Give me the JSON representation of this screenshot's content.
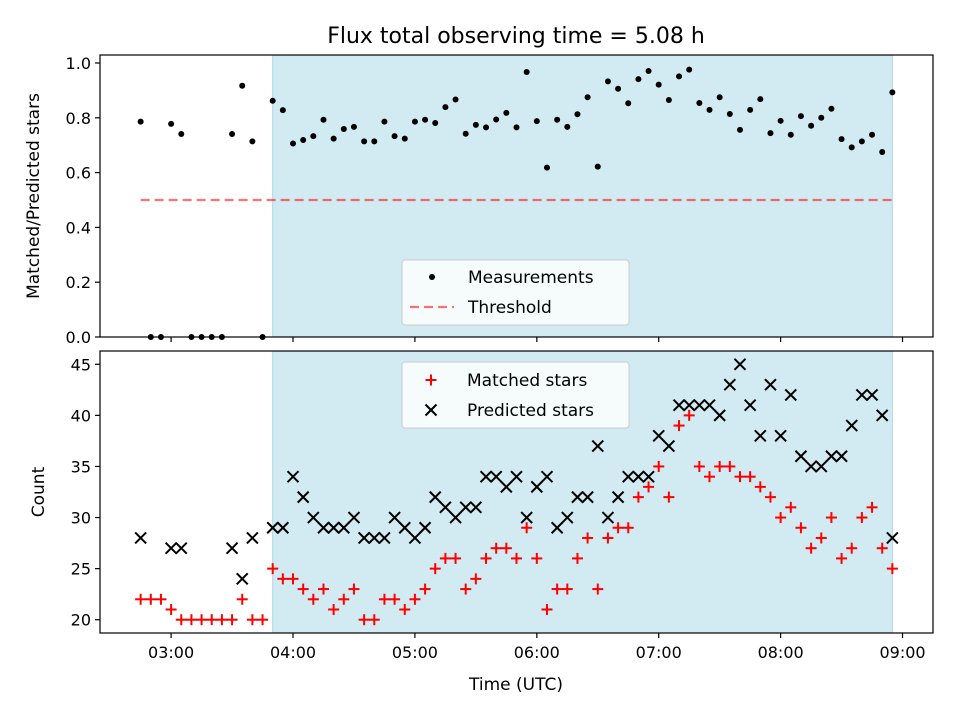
{
  "figure": {
    "title": "Flux total observing time = 5.08 h",
    "xlabel": "Time (UTC)",
    "x_ticks": [
      "03:00",
      "04:00",
      "05:00",
      "06:00",
      "07:00",
      "08:00",
      "09:00"
    ]
  },
  "colors": {
    "shade": "#add8e6",
    "threshold": "#ff0000",
    "matched": "#ff0000",
    "predicted": "#000000",
    "measurements": "#000000"
  },
  "chart_data": [
    {
      "type": "scatter",
      "title": "Flux total observing time = 5.08 h",
      "xlabel": "",
      "ylabel": "Matched/Predicted stars",
      "x_range": [
        "02:25",
        "09:15"
      ],
      "ylim": [
        0,
        1.0
      ],
      "y_ticks": [
        "0.0",
        "0.2",
        "0.4",
        "0.6",
        "0.8",
        "1.0"
      ],
      "shaded_interval": [
        "03:50",
        "08:55"
      ],
      "legend": {
        "placement": "lower-center",
        "entries": [
          "Measurements",
          "Threshold"
        ]
      },
      "threshold": {
        "name": "Threshold",
        "value": 0.5,
        "x_range": [
          "02:45",
          "08:55"
        ]
      },
      "series": [
        {
          "name": "Measurements",
          "points": [
            [
              "02:45",
              0.786
            ],
            [
              "02:50",
              0.0
            ],
            [
              "02:55",
              0.0
            ],
            [
              "03:00",
              0.778
            ],
            [
              "03:05",
              0.741
            ],
            [
              "03:10",
              0.0
            ],
            [
              "03:15",
              0.0
            ],
            [
              "03:20",
              0.0
            ],
            [
              "03:25",
              0.0
            ],
            [
              "03:30",
              0.741
            ],
            [
              "03:35",
              0.917
            ],
            [
              "03:40",
              0.714
            ],
            [
              "03:45",
              0.0
            ],
            [
              "03:50",
              0.862
            ],
            [
              "03:55",
              0.828
            ],
            [
              "04:00",
              0.706
            ],
            [
              "04:05",
              0.719
            ],
            [
              "04:10",
              0.733
            ],
            [
              "04:15",
              0.793
            ],
            [
              "04:20",
              0.724
            ],
            [
              "04:25",
              0.759
            ],
            [
              "04:30",
              0.767
            ],
            [
              "04:35",
              0.714
            ],
            [
              "04:40",
              0.714
            ],
            [
              "04:45",
              0.786
            ],
            [
              "04:50",
              0.733
            ],
            [
              "04:55",
              0.724
            ],
            [
              "05:00",
              0.786
            ],
            [
              "05:05",
              0.793
            ],
            [
              "05:10",
              0.781
            ],
            [
              "05:15",
              0.839
            ],
            [
              "05:20",
              0.867
            ],
            [
              "05:25",
              0.742
            ],
            [
              "05:30",
              0.774
            ],
            [
              "05:35",
              0.765
            ],
            [
              "05:40",
              0.794
            ],
            [
              "05:45",
              0.818
            ],
            [
              "05:50",
              0.765
            ],
            [
              "05:55",
              0.967
            ],
            [
              "06:00",
              0.788
            ],
            [
              "06:05",
              0.618
            ],
            [
              "06:10",
              0.793
            ],
            [
              "06:15",
              0.767
            ],
            [
              "06:20",
              0.813
            ],
            [
              "06:25",
              0.875
            ],
            [
              "06:30",
              0.622
            ],
            [
              "06:35",
              0.933
            ],
            [
              "06:40",
              0.906
            ],
            [
              "06:45",
              0.853
            ],
            [
              "06:50",
              0.941
            ],
            [
              "06:55",
              0.971
            ],
            [
              "07:00",
              0.921
            ],
            [
              "07:05",
              0.865
            ],
            [
              "07:10",
              0.951
            ],
            [
              "07:15",
              0.976
            ],
            [
              "07:20",
              0.854
            ],
            [
              "07:25",
              0.829
            ],
            [
              "07:30",
              0.875
            ],
            [
              "07:35",
              0.814
            ],
            [
              "07:40",
              0.756
            ],
            [
              "07:45",
              0.829
            ],
            [
              "07:50",
              0.868
            ],
            [
              "07:55",
              0.744
            ],
            [
              "08:00",
              0.789
            ],
            [
              "08:05",
              0.738
            ],
            [
              "08:10",
              0.806
            ],
            [
              "08:15",
              0.771
            ],
            [
              "08:20",
              0.8
            ],
            [
              "08:25",
              0.833
            ],
            [
              "08:30",
              0.722
            ],
            [
              "08:35",
              0.692
            ],
            [
              "08:40",
              0.714
            ],
            [
              "08:45",
              0.738
            ],
            [
              "08:50",
              0.675
            ],
            [
              "08:55",
              0.893
            ]
          ]
        }
      ]
    },
    {
      "type": "scatter",
      "xlabel": "Time (UTC)",
      "ylabel": "Count",
      "x_range": [
        "02:25",
        "09:15"
      ],
      "ylim": [
        18.7,
        46.3
      ],
      "y_ticks": [
        "20",
        "25",
        "30",
        "35",
        "40",
        "45"
      ],
      "shaded_interval": [
        "03:50",
        "08:55"
      ],
      "legend": {
        "placement": "upper-center",
        "entries": [
          "Matched stars",
          "Predicted stars"
        ]
      },
      "series": [
        {
          "name": "Matched stars",
          "marker": "+",
          "points": [
            [
              "02:45",
              22
            ],
            [
              "02:50",
              22
            ],
            [
              "02:55",
              22
            ],
            [
              "03:00",
              21
            ],
            [
              "03:05",
              20
            ],
            [
              "03:10",
              20
            ],
            [
              "03:15",
              20
            ],
            [
              "03:20",
              20
            ],
            [
              "03:25",
              20
            ],
            [
              "03:30",
              20
            ],
            [
              "03:35",
              22
            ],
            [
              "03:40",
              20
            ],
            [
              "03:45",
              20
            ],
            [
              "03:50",
              25
            ],
            [
              "03:55",
              24
            ],
            [
              "04:00",
              24
            ],
            [
              "04:05",
              23
            ],
            [
              "04:10",
              22
            ],
            [
              "04:15",
              23
            ],
            [
              "04:20",
              21
            ],
            [
              "04:25",
              22
            ],
            [
              "04:30",
              23
            ],
            [
              "04:35",
              20
            ],
            [
              "04:40",
              20
            ],
            [
              "04:45",
              22
            ],
            [
              "04:50",
              22
            ],
            [
              "04:55",
              21
            ],
            [
              "05:00",
              22
            ],
            [
              "05:05",
              23
            ],
            [
              "05:10",
              25
            ],
            [
              "05:15",
              26
            ],
            [
              "05:20",
              26
            ],
            [
              "05:25",
              23
            ],
            [
              "05:30",
              24
            ],
            [
              "05:35",
              26
            ],
            [
              "05:40",
              27
            ],
            [
              "05:45",
              27
            ],
            [
              "05:50",
              26
            ],
            [
              "05:55",
              29
            ],
            [
              "06:00",
              26
            ],
            [
              "06:05",
              21
            ],
            [
              "06:10",
              23
            ],
            [
              "06:15",
              23
            ],
            [
              "06:20",
              26
            ],
            [
              "06:25",
              28
            ],
            [
              "06:30",
              23
            ],
            [
              "06:35",
              28
            ],
            [
              "06:40",
              29
            ],
            [
              "06:45",
              29
            ],
            [
              "06:50",
              32
            ],
            [
              "06:55",
              33
            ],
            [
              "07:00",
              35
            ],
            [
              "07:05",
              32
            ],
            [
              "07:10",
              39
            ],
            [
              "07:15",
              40
            ],
            [
              "07:20",
              35
            ],
            [
              "07:25",
              34
            ],
            [
              "07:30",
              35
            ],
            [
              "07:35",
              35
            ],
            [
              "07:40",
              34
            ],
            [
              "07:45",
              34
            ],
            [
              "07:50",
              33
            ],
            [
              "07:55",
              32
            ],
            [
              "08:00",
              30
            ],
            [
              "08:05",
              31
            ],
            [
              "08:10",
              29
            ],
            [
              "08:15",
              27
            ],
            [
              "08:20",
              28
            ],
            [
              "08:25",
              30
            ],
            [
              "08:30",
              26
            ],
            [
              "08:35",
              27
            ],
            [
              "08:40",
              30
            ],
            [
              "08:45",
              31
            ],
            [
              "08:50",
              27
            ],
            [
              "08:55",
              25
            ]
          ]
        },
        {
          "name": "Predicted stars",
          "marker": "x",
          "points": [
            [
              "02:45",
              28
            ],
            [
              "03:00",
              27
            ],
            [
              "03:05",
              27
            ],
            [
              "03:30",
              27
            ],
            [
              "03:35",
              24
            ],
            [
              "03:40",
              28
            ],
            [
              "03:50",
              29
            ],
            [
              "03:55",
              29
            ],
            [
              "04:00",
              34
            ],
            [
              "04:05",
              32
            ],
            [
              "04:10",
              30
            ],
            [
              "04:15",
              29
            ],
            [
              "04:20",
              29
            ],
            [
              "04:25",
              29
            ],
            [
              "04:30",
              30
            ],
            [
              "04:35",
              28
            ],
            [
              "04:40",
              28
            ],
            [
              "04:45",
              28
            ],
            [
              "04:50",
              30
            ],
            [
              "04:55",
              29
            ],
            [
              "05:00",
              28
            ],
            [
              "05:05",
              29
            ],
            [
              "05:10",
              32
            ],
            [
              "05:15",
              31
            ],
            [
              "05:20",
              30
            ],
            [
              "05:25",
              31
            ],
            [
              "05:30",
              31
            ],
            [
              "05:35",
              34
            ],
            [
              "05:40",
              34
            ],
            [
              "05:45",
              33
            ],
            [
              "05:50",
              34
            ],
            [
              "05:55",
              30
            ],
            [
              "06:00",
              33
            ],
            [
              "06:05",
              34
            ],
            [
              "06:10",
              29
            ],
            [
              "06:15",
              30
            ],
            [
              "06:20",
              32
            ],
            [
              "06:25",
              32
            ],
            [
              "06:30",
              37
            ],
            [
              "06:35",
              30
            ],
            [
              "06:40",
              32
            ],
            [
              "06:45",
              34
            ],
            [
              "06:50",
              34
            ],
            [
              "06:55",
              34
            ],
            [
              "07:00",
              38
            ],
            [
              "07:05",
              37
            ],
            [
              "07:10",
              41
            ],
            [
              "07:15",
              41
            ],
            [
              "07:20",
              41
            ],
            [
              "07:25",
              41
            ],
            [
              "07:30",
              40
            ],
            [
              "07:35",
              43
            ],
            [
              "07:40",
              45
            ],
            [
              "07:45",
              41
            ],
            [
              "07:50",
              38
            ],
            [
              "07:55",
              43
            ],
            [
              "08:00",
              38
            ],
            [
              "08:05",
              42
            ],
            [
              "08:10",
              36
            ],
            [
              "08:15",
              35
            ],
            [
              "08:20",
              35
            ],
            [
              "08:25",
              36
            ],
            [
              "08:30",
              36
            ],
            [
              "08:35",
              39
            ],
            [
              "08:40",
              42
            ],
            [
              "08:45",
              42
            ],
            [
              "08:50",
              40
            ],
            [
              "08:55",
              28
            ]
          ]
        }
      ]
    }
  ]
}
